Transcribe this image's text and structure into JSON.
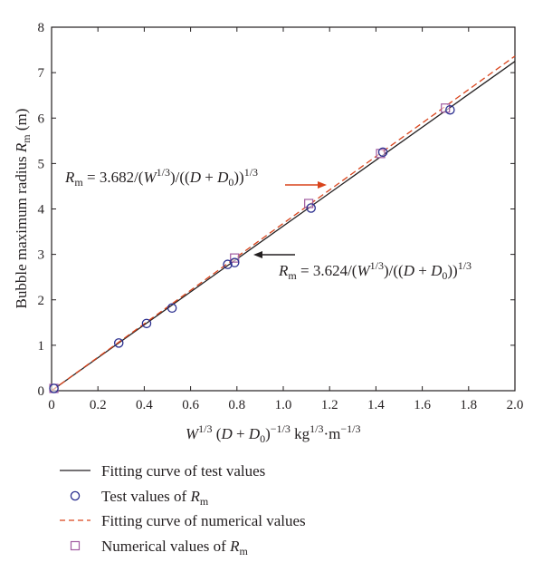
{
  "chart_data": {
    "type": "line",
    "xlim": [
      0,
      2.0
    ],
    "ylim": [
      0,
      8
    ],
    "xticks": [
      "0",
      "0.2",
      "0.4",
      "0.6",
      "0.8",
      "1.0",
      "1.2",
      "1.4",
      "1.6",
      "1.8",
      "2.0"
    ],
    "yticks": [
      "0",
      "1",
      "2",
      "3",
      "4",
      "5",
      "6",
      "7",
      "8"
    ],
    "grid": false,
    "legend_position": "bottom",
    "xlabel": {
      "w": "W",
      "w_exp": "1/3",
      "open": "(",
      "d": "D",
      "plus": "+",
      "d0": "D",
      "d0_sub": "0",
      "close": ")",
      "close_exp": "−1/3",
      "units": "kg",
      "units_exp": "1/3",
      "dot_m": "·m",
      "m_exp": "−1/3"
    },
    "ylabel": {
      "prefix": "Bubble maximum radius",
      "sym": "R",
      "sub": "m",
      "unit": "(m)"
    },
    "series": [
      {
        "name": "Fitting curve of test values",
        "kind": "line",
        "style": "solid",
        "color": "#231f20",
        "slope": 3.624,
        "x_range": [
          0,
          2.0
        ]
      },
      {
        "name": "Test values of R_m",
        "kind": "scatter",
        "marker": "circle",
        "color": "#2b2f8f",
        "x": [
          0.01,
          0.29,
          0.41,
          0.52,
          0.76,
          0.79,
          1.12,
          1.43,
          1.72
        ],
        "y": [
          0.05,
          1.05,
          1.48,
          1.82,
          2.78,
          2.82,
          4.02,
          5.25,
          6.18
        ]
      },
      {
        "name": "Fitting curve of numerical values",
        "kind": "line",
        "style": "dashed",
        "color": "#d9441c",
        "slope": 3.682,
        "x_range": [
          0,
          2.0
        ]
      },
      {
        "name": "Numerical values of R_m",
        "kind": "scatter",
        "marker": "square",
        "color": "#a05aa0",
        "x": [
          0.01,
          0.79,
          1.11,
          1.42,
          1.7
        ],
        "y": [
          0.05,
          2.92,
          4.12,
          5.22,
          6.22
        ]
      }
    ],
    "annotations": [
      {
        "id": "ann1",
        "lhs_sym": "R",
        "lhs_sub": "m",
        "eq": " = 3.682/(",
        "w": "W",
        "w_exp": "1/3",
        "mid": ")/((",
        "d": "D",
        "plus": " + ",
        "d0": "D",
        "d0_sub": "0",
        "close": "))",
        "close_exp": "1/3",
        "arrow_color": "#d9441c"
      },
      {
        "id": "ann2",
        "lhs_sym": "R",
        "lhs_sub": "m",
        "eq": " = 3.624/(",
        "w": "W",
        "w_exp": "1/3",
        "mid": ")/((",
        "d": "D",
        "plus": " + ",
        "d0": "D",
        "d0_sub": "0",
        "close": "))",
        "close_exp": "1/3",
        "arrow_color": "#231f20"
      }
    ],
    "legend": [
      {
        "label": "Fitting curve of test values"
      },
      {
        "label": "Test values of ",
        "sym": "R",
        "sub": "m"
      },
      {
        "label": "Fitting curve of numerical values"
      },
      {
        "label": "Numerical values of ",
        "sym": "R",
        "sub": "m"
      }
    ]
  }
}
